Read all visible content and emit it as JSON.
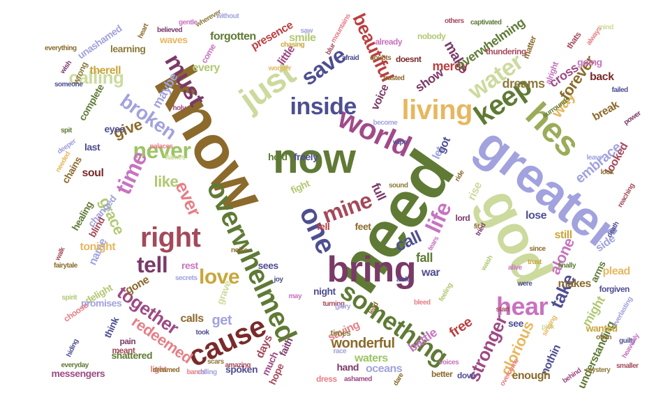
{
  "palette": [
    "#8b6a2b",
    "#5f7a35",
    "#a1a2de",
    "#ccda9d",
    "#7a3a68",
    "#a4495a",
    "#e7b75f",
    "#c773c0",
    "#bb3f40",
    "#b1c873",
    "#4e4e92",
    "#e67e86",
    "#8d7b3b",
    "#9d4a84",
    "#d8d898"
  ],
  "words": [
    {
      "text": "know",
      "color": "#8b6a2b"
    },
    {
      "text": "need",
      "color": "#5f7a35"
    },
    {
      "text": "greater",
      "color": "#a1a2de"
    },
    {
      "text": "god",
      "color": "#ccda9d"
    },
    {
      "text": "overwhelmed",
      "color": "#5f7a35"
    },
    {
      "text": "now",
      "color": "#5f7a35"
    },
    {
      "text": "bring",
      "color": "#7a3a68"
    },
    {
      "text": "one",
      "color": "#4e4e92"
    },
    {
      "text": "hes",
      "color": "#9cab59"
    },
    {
      "text": "world",
      "color": "#a14a8a"
    },
    {
      "text": "living",
      "color": "#e7b75f"
    },
    {
      "text": "something",
      "color": "#5f7a35"
    },
    {
      "text": "cause",
      "color": "#7a2a2a"
    },
    {
      "text": "right",
      "color": "#a4495a"
    },
    {
      "text": "hear",
      "color": "#c773c0"
    },
    {
      "text": "just",
      "color": "#ccda9d"
    },
    {
      "text": "inside",
      "color": "#4e4e92"
    },
    {
      "text": "keep",
      "color": "#5f7a35"
    },
    {
      "text": "never",
      "color": "#9cc464"
    },
    {
      "text": "tell",
      "color": "#7a3a68"
    },
    {
      "text": "love",
      "color": "#c9a63a"
    },
    {
      "text": "save",
      "color": "#4e4e92"
    },
    {
      "text": "must",
      "color": "#7a3a68"
    },
    {
      "text": "life",
      "color": "#c773c0"
    },
    {
      "text": "water",
      "color": "#ccda9d"
    },
    {
      "text": "mine",
      "color": "#a4495a"
    },
    {
      "text": "beautiful",
      "color": "#bb3f40"
    },
    {
      "text": "time",
      "color": "#c773c0"
    },
    {
      "text": "together",
      "color": "#9d4a84"
    },
    {
      "text": "stronger",
      "color": "#9d4a84"
    },
    {
      "text": "glorious",
      "color": "#e7b75f"
    },
    {
      "text": "take",
      "color": "#4e4e92"
    },
    {
      "text": "wonderful",
      "color": "#8b6a2b"
    },
    {
      "text": "broken",
      "color": "#a1a2de"
    },
    {
      "text": "calling",
      "color": "#ccda9d"
    },
    {
      "text": "give",
      "color": "#8b6a2b"
    },
    {
      "text": "grace",
      "color": "#b1c873"
    },
    {
      "text": "call",
      "color": "#4e4e92"
    },
    {
      "text": "fall",
      "color": "#5f7a35"
    },
    {
      "text": "redeemed",
      "color": "#e67e86"
    },
    {
      "text": "get",
      "color": "#a1a2de"
    },
    {
      "text": "show",
      "color": "#7a3a68"
    },
    {
      "text": "mercy",
      "color": "#bb3f40"
    },
    {
      "text": "ever",
      "color": "#e67e86"
    },
    {
      "text": "like",
      "color": "#b1c873"
    },
    {
      "text": "full",
      "color": "#7a3a68"
    },
    {
      "text": "free",
      "color": "#bb3f40"
    },
    {
      "text": "war",
      "color": "#4e4e92"
    },
    {
      "text": "still",
      "color": "#c9a63a"
    },
    {
      "text": "alone",
      "color": "#c773c0"
    },
    {
      "text": "way",
      "color": "#e7b75f"
    },
    {
      "text": "forever",
      "color": "#8b6a2b"
    },
    {
      "text": "embrace",
      "color": "#a1a2de"
    },
    {
      "text": "make",
      "color": "#7a3a68"
    },
    {
      "text": "overwhelming",
      "color": "#5f7a35"
    },
    {
      "text": "dreams",
      "color": "#8d7b3b"
    },
    {
      "text": "cross",
      "color": "#9d4a84"
    },
    {
      "text": "back",
      "color": "#7a2a2a"
    },
    {
      "text": "going",
      "color": "#c773c0"
    },
    {
      "text": "break",
      "color": "#8b6a2b"
    },
    {
      "text": "looked",
      "color": "#a4495a"
    },
    {
      "text": "side",
      "color": "#a1a2de"
    },
    {
      "text": "might",
      "color": "#b1c873"
    },
    {
      "text": "plead",
      "color": "#e7b75f"
    },
    {
      "text": "arms",
      "color": "#5f7a35"
    },
    {
      "text": "lose",
      "color": "#4e4e92"
    },
    {
      "text": "understanding",
      "color": "#5f7a35"
    },
    {
      "text": "makes",
      "color": "#8b6a2b"
    },
    {
      "text": "nothin",
      "color": "#4e4e92"
    },
    {
      "text": "enough",
      "color": "#8b6a2b"
    },
    {
      "text": "see",
      "color": "#4e4e92"
    },
    {
      "text": "rise",
      "color": "#ccda9d"
    },
    {
      "text": "wanted",
      "color": "#c9a63a"
    },
    {
      "text": "battle",
      "color": "#c773c0"
    },
    {
      "text": "saying",
      "color": "#e67e86"
    },
    {
      "text": "days",
      "color": "#a4495a"
    },
    {
      "text": "faith",
      "color": "#7a3a68"
    },
    {
      "text": "hope",
      "color": "#a4495a"
    },
    {
      "text": "much",
      "color": "#9d4a84"
    },
    {
      "text": "spoken",
      "color": "#4e4e92"
    },
    {
      "text": "waters",
      "color": "#9cc464"
    },
    {
      "text": "oceans",
      "color": "#a1a2de"
    },
    {
      "text": "hand",
      "color": "#7a3a68"
    },
    {
      "text": "times",
      "color": "#8d7b3b"
    },
    {
      "text": "night",
      "color": "#4e4e92"
    },
    {
      "text": "fell",
      "color": "#bb3f40"
    },
    {
      "text": "feet",
      "color": "#8b6a2b"
    },
    {
      "text": "fight",
      "color": "#b1c873"
    },
    {
      "text": "freely",
      "color": "#4e4e92"
    },
    {
      "text": "hold",
      "color": "#5f7a35"
    },
    {
      "text": "let",
      "color": "#a1a2de"
    },
    {
      "text": "got",
      "color": "#4e4e92"
    },
    {
      "text": "voice",
      "color": "#7a3a68"
    },
    {
      "text": "little",
      "color": "#9d4a84"
    },
    {
      "text": "smile",
      "color": "#b1c873"
    },
    {
      "text": "presence",
      "color": "#bb3f40"
    },
    {
      "text": "forgotten",
      "color": "#5f7a35"
    },
    {
      "text": "waves",
      "color": "#e7b75f"
    },
    {
      "text": "every",
      "color": "#b1c873"
    },
    {
      "text": "come",
      "color": "#c773c0"
    },
    {
      "text": "maybe",
      "color": "#a1a2de"
    },
    {
      "text": "therell",
      "color": "#c9a63a"
    },
    {
      "text": "learning",
      "color": "#8d7b3b"
    },
    {
      "text": "unashamed",
      "color": "#a1a2de"
    },
    {
      "text": "eyes",
      "color": "#4e4e92"
    },
    {
      "text": "last",
      "color": "#4e4e92"
    },
    {
      "text": "soul",
      "color": "#7a2a2a"
    },
    {
      "text": "chains",
      "color": "#8b6a2b"
    },
    {
      "text": "healing",
      "color": "#5f7a35"
    },
    {
      "text": "changed",
      "color": "#a1a2de"
    },
    {
      "text": "blind",
      "color": "#a4495a"
    },
    {
      "text": "name",
      "color": "#a1a2de"
    },
    {
      "text": "tonight",
      "color": "#e7b75f"
    },
    {
      "text": "gone",
      "color": "#8b6a2b"
    },
    {
      "text": "delight",
      "color": "#b1c873"
    },
    {
      "text": "think",
      "color": "#4e4e92"
    },
    {
      "text": "shattered",
      "color": "#5f7a35"
    },
    {
      "text": "meant",
      "color": "#a4495a"
    },
    {
      "text": "pain",
      "color": "#7a3a68"
    },
    {
      "text": "calls",
      "color": "#8b6a2b"
    },
    {
      "text": "rest",
      "color": "#c773c0"
    },
    {
      "text": "grave",
      "color": "#ccda9d"
    },
    {
      "text": "sees",
      "color": "#4e4e92"
    },
    {
      "text": "complete",
      "color": "#5f7a35"
    },
    {
      "text": "wrong",
      "color": "#8d7b3b"
    },
    {
      "text": "messengers",
      "color": "#9d4a84"
    },
    {
      "text": "light",
      "color": "#e67e86"
    },
    {
      "text": "promises",
      "color": "#a1a2de"
    },
    {
      "text": "choose",
      "color": "#e67e86"
    },
    {
      "text": "took",
      "color": "#4e4e92"
    },
    {
      "text": "heart",
      "color": "#8b6a2b"
    },
    {
      "text": "believed",
      "color": "#7a3a68"
    },
    {
      "text": "wherever",
      "color": "#8d7b3b"
    },
    {
      "text": "without",
      "color": "#a1a2de"
    },
    {
      "text": "doesnt",
      "color": "#7a2a2a"
    },
    {
      "text": "nobody",
      "color": "#b1c873"
    },
    {
      "text": "others",
      "color": "#a4495a"
    },
    {
      "text": "captivated",
      "color": "#5f7a35"
    },
    {
      "text": "thundering",
      "color": "#a4495a"
    },
    {
      "text": "matter",
      "color": "#8b6a2b"
    },
    {
      "text": "alright",
      "color": "#c773c0"
    },
    {
      "text": "thats",
      "color": "#a4495a"
    },
    {
      "text": "always",
      "color": "#e67e86"
    },
    {
      "text": "mind",
      "color": "#ccda9d"
    },
    {
      "text": "failed",
      "color": "#4e4e92"
    },
    {
      "text": "power",
      "color": "#7a3a68"
    },
    {
      "text": "surrounds",
      "color": "#5f7a35"
    },
    {
      "text": "leave",
      "color": "#a1a2de"
    },
    {
      "text": "look",
      "color": "#8b6a2b"
    },
    {
      "text": "reaching",
      "color": "#a4495a"
    },
    {
      "text": "death",
      "color": "#4e4e92"
    },
    {
      "text": "forgiven",
      "color": "#4e4e92"
    },
    {
      "text": "often",
      "color": "#8b6a2b"
    },
    {
      "text": "guilty",
      "color": "#4e4e92"
    },
    {
      "text": "mystery",
      "color": "#8d7b3b"
    },
    {
      "text": "behind",
      "color": "#9d4a84"
    },
    {
      "text": "pick",
      "color": "#ccda9d"
    },
    {
      "text": "singing",
      "color": "#e7b75f"
    },
    {
      "text": "trust",
      "color": "#c9a63a"
    },
    {
      "text": "since",
      "color": "#8b6a2b"
    },
    {
      "text": "were",
      "color": "#4e4e92"
    },
    {
      "text": "start",
      "color": "#a4495a"
    },
    {
      "text": "wash",
      "color": "#b1c873"
    },
    {
      "text": "overcome",
      "color": "#e67e86"
    },
    {
      "text": "dove",
      "color": "#4e4e92"
    },
    {
      "text": "better",
      "color": "#8b6a2b"
    },
    {
      "text": "voices",
      "color": "#c773c0"
    },
    {
      "text": "dare",
      "color": "#8b6a2b"
    },
    {
      "text": "ashamed",
      "color": "#9d4a84"
    },
    {
      "text": "dress",
      "color": "#e67e86"
    },
    {
      "text": "race",
      "color": "#a1a2de"
    },
    {
      "text": "lord",
      "color": "#7a3a68"
    },
    {
      "text": "ride",
      "color": "#8b6a2b"
    },
    {
      "text": "tears",
      "color": "#c773c0"
    },
    {
      "text": "aisle",
      "color": "#4e4e92"
    },
    {
      "text": "turning",
      "color": "#a4495a"
    },
    {
      "text": "wipe",
      "color": "#4e4e92"
    },
    {
      "text": "sound",
      "color": "#8d7b3b"
    },
    {
      "text": "become",
      "color": "#a1a2de"
    },
    {
      "text": "trusted",
      "color": "#8b6a2b"
    },
    {
      "text": "already",
      "color": "#c773c0"
    },
    {
      "text": "doubts",
      "color": "#8b6a2b"
    },
    {
      "text": "afraid",
      "color": "#4e4e92"
    },
    {
      "text": "blur",
      "color": "#a4495a"
    },
    {
      "text": "saw",
      "color": "#a1a2de"
    },
    {
      "text": "wonder",
      "color": "#e7b75f"
    },
    {
      "text": "chasing",
      "color": "#c9a63a"
    },
    {
      "text": "mountains",
      "color": "#e67e86"
    },
    {
      "text": "wish",
      "color": "#7a3a68"
    },
    {
      "text": "someone",
      "color": "#4e4e92"
    },
    {
      "text": "everything",
      "color": "#8b6a2b"
    },
    {
      "text": "needed",
      "color": "#e7b75f"
    },
    {
      "text": "flames",
      "color": "#ccda9d"
    },
    {
      "text": "holy",
      "color": "#9d4a84"
    },
    {
      "text": "spit",
      "color": "#5f7a35"
    },
    {
      "text": "deeper",
      "color": "#a1a2de"
    },
    {
      "text": "palaces",
      "color": "#e67e86"
    },
    {
      "text": "gentle",
      "color": "#c773c0"
    },
    {
      "text": "walk",
      "color": "#a4495a"
    },
    {
      "text": "fairytale",
      "color": "#8b6a2b"
    },
    {
      "text": "spirit",
      "color": "#b1c873"
    },
    {
      "text": "hiding",
      "color": "#4e4e92"
    },
    {
      "text": "everyday",
      "color": "#5f7a35"
    },
    {
      "text": "dreamed",
      "color": "#8b6a2b"
    },
    {
      "text": "bands",
      "color": "#e67e86"
    },
    {
      "text": "rolling",
      "color": "#a1a2de"
    },
    {
      "text": "scars",
      "color": "#8d7b3b"
    },
    {
      "text": "amazing",
      "color": "#a4495a"
    },
    {
      "text": "secrets",
      "color": "#a1a2de"
    },
    {
      "text": "noise",
      "color": "#8b6a2b"
    },
    {
      "text": "joy",
      "color": "#4e4e92"
    },
    {
      "text": "may",
      "color": "#c773c0"
    },
    {
      "text": "glory",
      "color": "#a1a2de"
    },
    {
      "text": "lead",
      "color": "#8b6a2b"
    },
    {
      "text": "bleed",
      "color": "#e67e86"
    },
    {
      "text": "feeling",
      "color": "#b1c873"
    },
    {
      "text": "fit",
      "color": "#8b6a2b"
    },
    {
      "text": "tried",
      "color": "#7a3a68"
    },
    {
      "text": "alive",
      "color": "#c773c0"
    },
    {
      "text": "finally",
      "color": "#5f7a35"
    },
    {
      "text": "everlasting",
      "color": "#a1a2de"
    },
    {
      "text": "smaller",
      "color": "#a4495a"
    },
    {
      "text": "heavenly",
      "color": "#c773c0"
    }
  ]
}
